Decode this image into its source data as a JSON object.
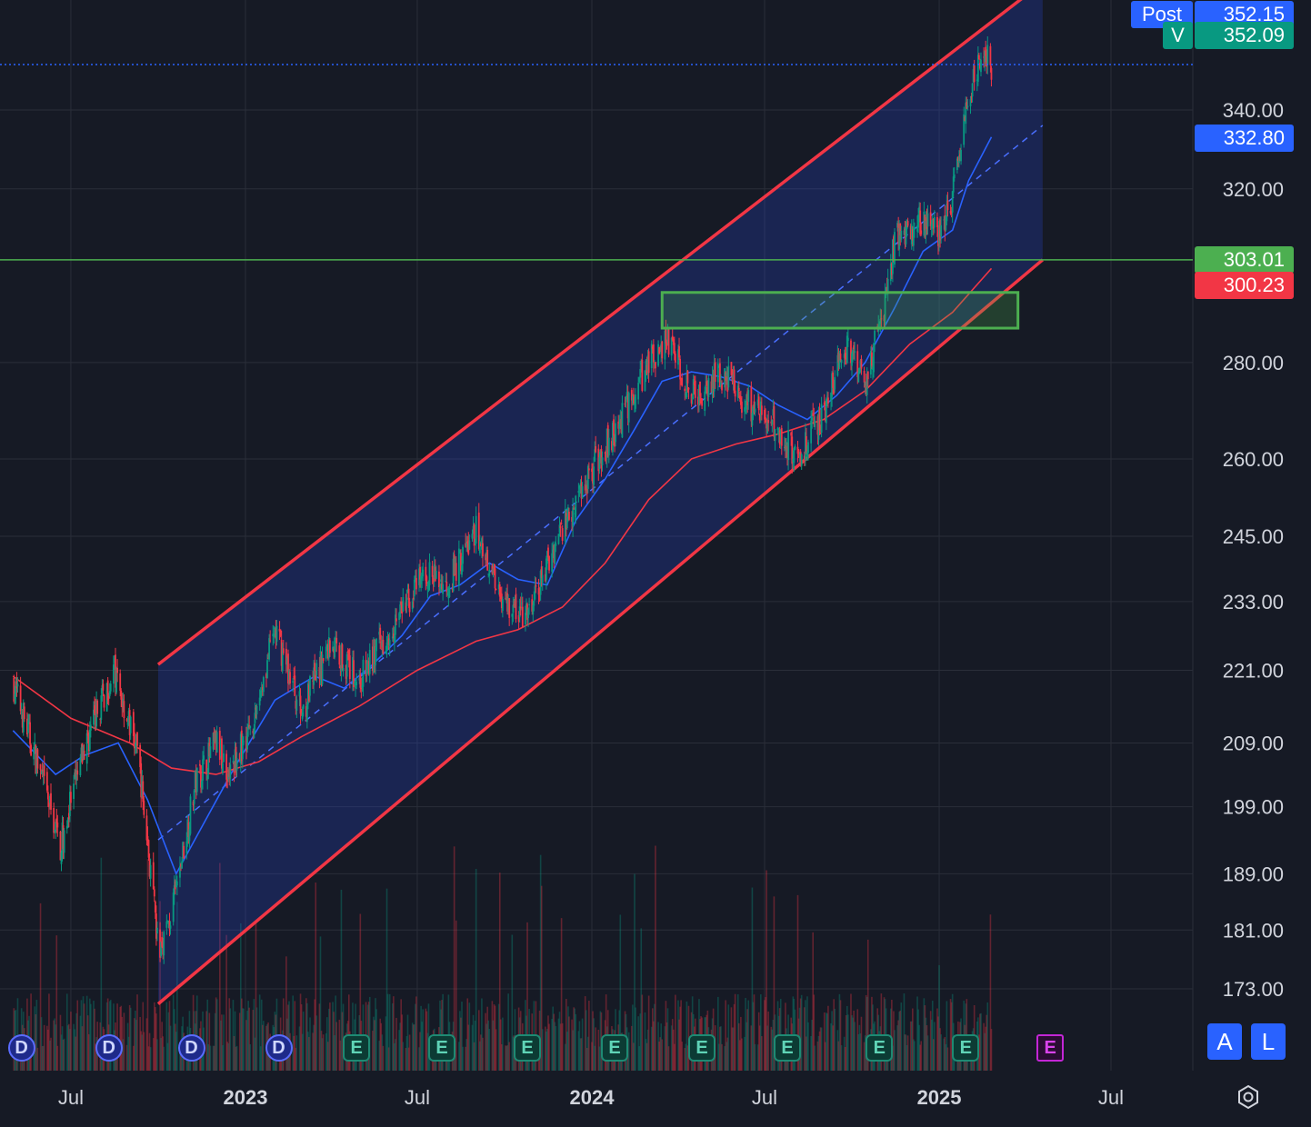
{
  "chart_data": {
    "type": "candlestick",
    "y_scale": "log",
    "ylim": [
      170,
      375
    ],
    "x_range": [
      "2022-05-01",
      "2025-08-01"
    ],
    "y_ticks": [
      "340.00",
      "320.00",
      "280.00",
      "260.00",
      "245.00",
      "233.00",
      "221.00",
      "209.00",
      "199.00",
      "189.00",
      "181.00",
      "173.00"
    ],
    "x_ticks": [
      {
        "label": "Jul",
        "date": "2022-07-01",
        "bold": false
      },
      {
        "label": "2023",
        "date": "2023-01-01",
        "bold": true
      },
      {
        "label": "Jul",
        "date": "2023-07-01",
        "bold": false
      },
      {
        "label": "2024",
        "date": "2024-01-01",
        "bold": true
      },
      {
        "label": "Jul",
        "date": "2024-07-01",
        "bold": false
      },
      {
        "label": "2025",
        "date": "2025-01-01",
        "bold": true
      },
      {
        "label": "Jul",
        "date": "2025-07-01",
        "bold": false
      }
    ],
    "price_anchors": [
      [
        "2022-05-01",
        219
      ],
      [
        "2022-06-01",
        203
      ],
      [
        "2022-06-20",
        193
      ],
      [
        "2022-07-15",
        208
      ],
      [
        "2022-08-15",
        221
      ],
      [
        "2022-09-10",
        207
      ],
      [
        "2022-10-01",
        178
      ],
      [
        "2022-10-15",
        183
      ],
      [
        "2022-11-10",
        203
      ],
      [
        "2022-12-01",
        209
      ],
      [
        "2022-12-15",
        204
      ],
      [
        "2023-01-10",
        213
      ],
      [
        "2023-02-01",
        228
      ],
      [
        "2023-03-01",
        214
      ],
      [
        "2023-04-01",
        226
      ],
      [
        "2023-05-01",
        219
      ],
      [
        "2023-06-01",
        228
      ],
      [
        "2023-07-10",
        238
      ],
      [
        "2023-08-01",
        236
      ],
      [
        "2023-09-01",
        246
      ],
      [
        "2023-10-01",
        233
      ],
      [
        "2023-10-25",
        230
      ],
      [
        "2023-12-01",
        247
      ],
      [
        "2024-01-01",
        258
      ],
      [
        "2024-02-01",
        268
      ],
      [
        "2024-03-01",
        280
      ],
      [
        "2024-03-20",
        285
      ],
      [
        "2024-04-20",
        272
      ],
      [
        "2024-05-15",
        278
      ],
      [
        "2024-06-15",
        271
      ],
      [
        "2024-07-15",
        266
      ],
      [
        "2024-08-05",
        260
      ],
      [
        "2024-09-01",
        270
      ],
      [
        "2024-09-25",
        283
      ],
      [
        "2024-10-15",
        276
      ],
      [
        "2024-11-05",
        292
      ],
      [
        "2024-11-15",
        308
      ],
      [
        "2024-12-10",
        312
      ],
      [
        "2025-01-01",
        309
      ],
      [
        "2025-01-15",
        318
      ],
      [
        "2025-02-01",
        342
      ],
      [
        "2025-02-15",
        356
      ],
      [
        "2025-02-25",
        352
      ]
    ],
    "ma_fast": [
      [
        "2022-05-01",
        211
      ],
      [
        "2022-06-15",
        204
      ],
      [
        "2022-07-15",
        207
      ],
      [
        "2022-08-20",
        209
      ],
      [
        "2022-09-20",
        200
      ],
      [
        "2022-10-20",
        189
      ],
      [
        "2022-11-20",
        197
      ],
      [
        "2022-12-20",
        205
      ],
      [
        "2023-02-01",
        216
      ],
      [
        "2023-03-15",
        220
      ],
      [
        "2023-04-15",
        218
      ],
      [
        "2023-05-15",
        222
      ],
      [
        "2023-06-15",
        227
      ],
      [
        "2023-07-15",
        234
      ],
      [
        "2023-08-15",
        236
      ],
      [
        "2023-09-15",
        240
      ],
      [
        "2023-10-15",
        237
      ],
      [
        "2023-11-15",
        236
      ],
      [
        "2023-12-15",
        248
      ],
      [
        "2024-01-15",
        256
      ],
      [
        "2024-02-15",
        266
      ],
      [
        "2024-03-15",
        276
      ],
      [
        "2024-04-15",
        278
      ],
      [
        "2024-05-15",
        277
      ],
      [
        "2024-06-15",
        275
      ],
      [
        "2024-07-15",
        271
      ],
      [
        "2024-08-15",
        268
      ],
      [
        "2024-09-15",
        273
      ],
      [
        "2024-10-15",
        280
      ],
      [
        "2024-11-15",
        292
      ],
      [
        "2024-12-15",
        305
      ],
      [
        "2025-01-15",
        310
      ],
      [
        "2025-02-01",
        322
      ],
      [
        "2025-02-25",
        333
      ]
    ],
    "ma_slow": [
      [
        "2022-05-01",
        220
      ],
      [
        "2022-07-01",
        213
      ],
      [
        "2022-09-01",
        209
      ],
      [
        "2022-10-15",
        205
      ],
      [
        "2022-12-01",
        204
      ],
      [
        "2023-01-15",
        206
      ],
      [
        "2023-03-01",
        210
      ],
      [
        "2023-05-01",
        215
      ],
      [
        "2023-07-01",
        221
      ],
      [
        "2023-09-01",
        226
      ],
      [
        "2023-10-15",
        228
      ],
      [
        "2023-12-01",
        232
      ],
      [
        "2024-01-15",
        240
      ],
      [
        "2024-03-01",
        252
      ],
      [
        "2024-04-15",
        260
      ],
      [
        "2024-06-01",
        263
      ],
      [
        "2024-07-15",
        265
      ],
      [
        "2024-09-01",
        268
      ],
      [
        "2024-10-15",
        274
      ],
      [
        "2024-12-01",
        284
      ],
      [
        "2025-01-15",
        291
      ],
      [
        "2025-02-25",
        301
      ]
    ],
    "channel_upper": [
      [
        "2022-10-01",
        222
      ],
      [
        "2025-04-20",
        375
      ]
    ],
    "channel_lower": [
      [
        "2022-10-01",
        171
      ],
      [
        "2025-04-20",
        303
      ]
    ],
    "channel_mid": [
      [
        "2022-10-01",
        194
      ],
      [
        "2025-04-20",
        336
      ]
    ],
    "resistance_box": {
      "from": "2024-03-15",
      "to": "2025-03-25",
      "high": 295.5,
      "low": 287.5
    },
    "hline_price": 303.01,
    "current_price": 352.09,
    "price_labels": [
      {
        "tag": "Post",
        "value": "352.15",
        "color": "#2962ff",
        "price": 366
      },
      {
        "tag": "V",
        "value": "352.09",
        "color": "#089981",
        "price": 360
      },
      {
        "tag": "",
        "value": "332.80",
        "color": "#2962ff",
        "price": 332.8
      },
      {
        "tag": "",
        "value": "303.01",
        "color": "#4caf50",
        "price": 303.01
      },
      {
        "tag": "",
        "value": "300.23",
        "color": "#f23645",
        "price": 297.2
      }
    ],
    "events": [
      {
        "date": "2022-05-10",
        "type": "D"
      },
      {
        "date": "2022-08-10",
        "type": "D"
      },
      {
        "date": "2022-11-05",
        "type": "D"
      },
      {
        "date": "2023-02-05",
        "type": "D"
      },
      {
        "date": "2023-04-28",
        "type": "E"
      },
      {
        "date": "2023-07-27",
        "type": "E"
      },
      {
        "date": "2023-10-25",
        "type": "E"
      },
      {
        "date": "2024-01-25",
        "type": "E"
      },
      {
        "date": "2024-04-26",
        "type": "E"
      },
      {
        "date": "2024-07-25",
        "type": "E"
      },
      {
        "date": "2024-10-30",
        "type": "E"
      },
      {
        "date": "2025-01-29",
        "type": "E"
      },
      {
        "date": "2025-04-28",
        "type": "E",
        "future": true
      }
    ],
    "colors": {
      "up": "#089981",
      "down": "#f23645",
      "ma_fast": "#2962ff",
      "ma_slow": "#f23645",
      "channel": "#f23645",
      "channel_fill": "rgba(41,70,200,0.28)",
      "grid": "#2a2e39",
      "box": "#4caf50",
      "hline": "#4caf50"
    }
  },
  "buttons": {
    "auto": "A",
    "log": "L"
  }
}
